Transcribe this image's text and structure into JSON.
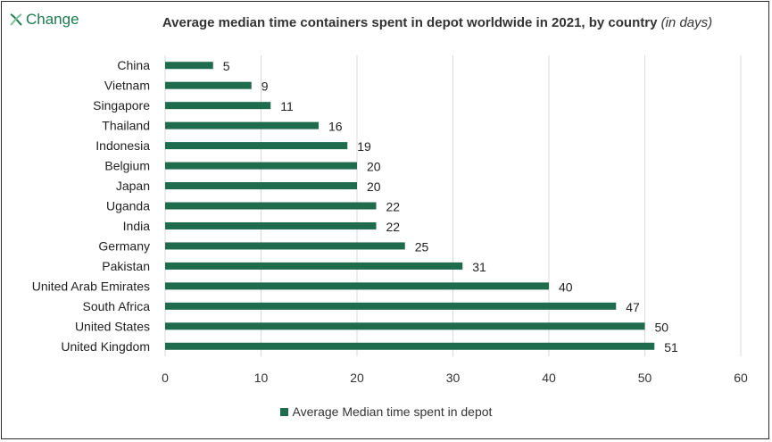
{
  "brand": {
    "logo_text": "Change",
    "logo_icon": "x-leaf-icon",
    "color": "#1e7a4f"
  },
  "chart_data": {
    "type": "bar",
    "orientation": "horizontal",
    "title": "Average median time containers spent in depot worldwide in 2021, by country",
    "title_unit": "(in days)",
    "categories": [
      "China",
      "Vietnam",
      "Singapore",
      "Thailand",
      "Indonesia",
      "Belgium",
      "Japan",
      "Uganda",
      "India",
      "Germany",
      "Pakistan",
      "United Arab Emirates",
      "South Africa",
      "United States",
      "United Kingdom"
    ],
    "series": [
      {
        "name": "Average Median time spent in depot",
        "values": [
          5,
          9,
          11,
          16,
          19,
          20,
          20,
          22,
          22,
          25,
          31,
          40,
          47,
          50,
          51
        ],
        "color": "#1f6b4e"
      }
    ],
    "xlim": [
      0,
      60
    ],
    "xticks": [
      0,
      10,
      20,
      30,
      40,
      50,
      60
    ],
    "grid": true,
    "legend_position": "bottom",
    "data_labels": true
  }
}
